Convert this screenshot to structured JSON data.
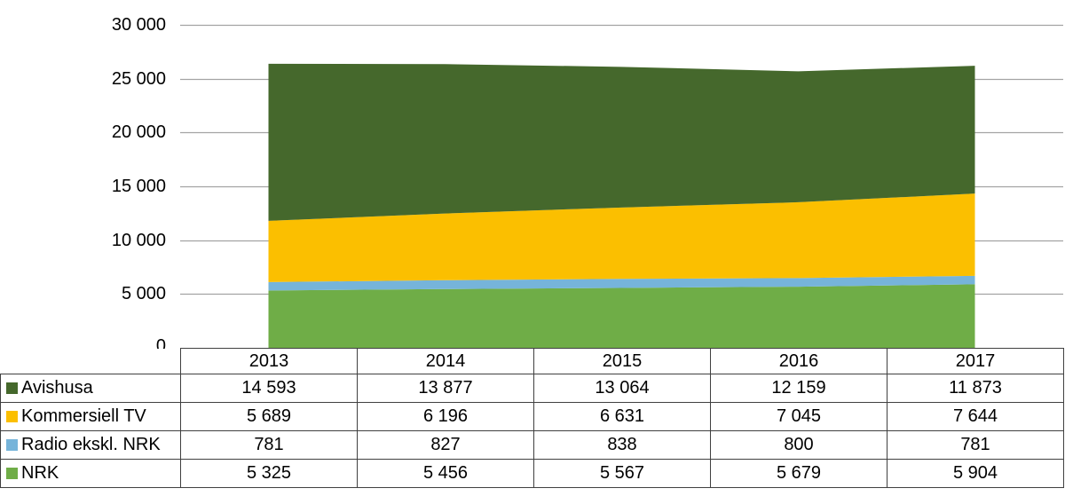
{
  "chart_data": {
    "type": "area",
    "stacked": true,
    "categories": [
      "2013",
      "2014",
      "2015",
      "2016",
      "2017"
    ],
    "series": [
      {
        "name": "NRK",
        "color": "#6FAD47",
        "values": [
          5325,
          5456,
          5567,
          5679,
          5904
        ]
      },
      {
        "name": "Radio ekskl. NRK",
        "color": "#76B4DA",
        "values": [
          781,
          827,
          838,
          800,
          781
        ]
      },
      {
        "name": "Kommersiell TV",
        "color": "#FBBF00",
        "values": [
          5689,
          6196,
          6631,
          7045,
          7644
        ]
      },
      {
        "name": "Avishusa",
        "color": "#45682C",
        "values": [
          14593,
          13877,
          13064,
          12159,
          11873
        ]
      }
    ],
    "title": "",
    "xlabel": "",
    "ylabel": "",
    "ylim": [
      0,
      30000
    ],
    "ytick_step": 5000,
    "ytick_labels": [
      "30 000",
      "25 000",
      "20 000",
      "15 000",
      "10 000",
      "5 000",
      "0"
    ],
    "grid": true,
    "gridline_color": "#A3A3A3",
    "legend_position": "table-left"
  },
  "table": {
    "years": [
      "2013",
      "2014",
      "2015",
      "2016",
      "2017"
    ],
    "rows": [
      {
        "label": "Avishusa",
        "color": "#45682C",
        "values": [
          "14 593",
          "13 877",
          "13 064",
          "12 159",
          "11 873"
        ]
      },
      {
        "label": "Kommersiell TV",
        "color": "#FBBF00",
        "values": [
          "5 689",
          "6 196",
          "6 631",
          "7 045",
          "7 644"
        ]
      },
      {
        "label": "Radio ekskl. NRK",
        "color": "#76B4DA",
        "values": [
          "781",
          "827",
          "838",
          "800",
          "781"
        ]
      },
      {
        "label": "NRK",
        "color": "#6FAD47",
        "values": [
          "5 325",
          "5 456",
          "5 567",
          "5 679",
          "5 904"
        ]
      }
    ]
  }
}
